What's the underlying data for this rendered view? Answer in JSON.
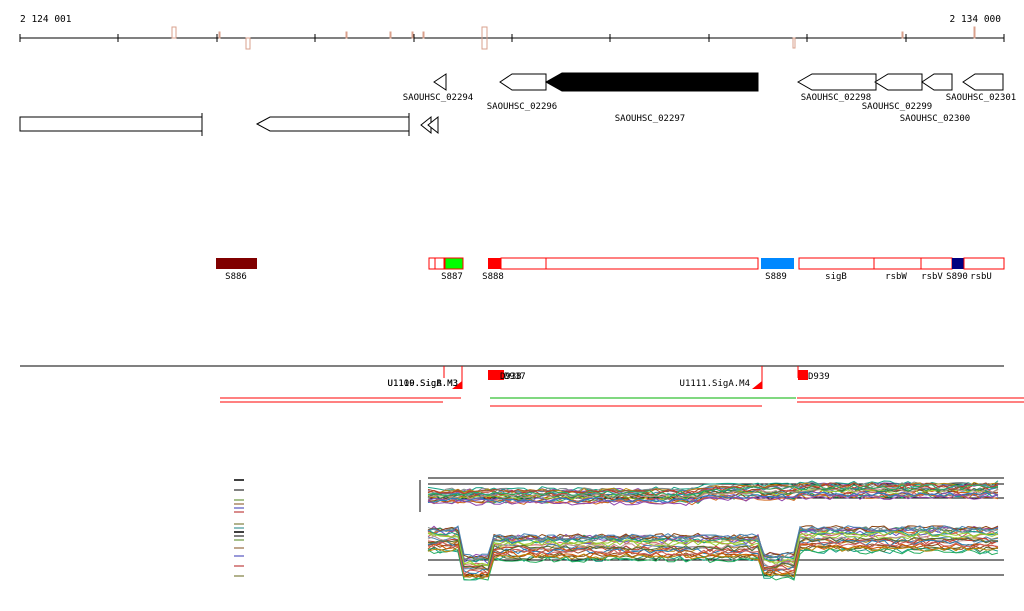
{
  "colors": {
    "background": "#ffffff",
    "axis": "#000000",
    "tick_mark": "#d9a08c",
    "gene_fill": "#ffffff",
    "gene_filled": "#000000",
    "segment_outline": "#ff0000",
    "s886": "#800000",
    "s887": "#00ff00",
    "s888": "#ff0000",
    "s889": "#0088ff",
    "s890": "#000080",
    "sigA_line": "#ff0000",
    "green_line": "#00b000",
    "tiling_dark": "#000000"
  },
  "axis": {
    "start_label": "2 124 001",
    "end_label": "2 134 000"
  },
  "genes": [
    {
      "id": "g1",
      "label": "",
      "strand": "plus",
      "filled": false
    },
    {
      "id": "g2",
      "label": "",
      "strand": "minus",
      "filled": false
    },
    {
      "id": "g3",
      "label": "",
      "strand": "minus",
      "filled": false
    },
    {
      "id": "g4",
      "label": "SAOUHSC_02294",
      "strand": "minus",
      "filled": false
    },
    {
      "id": "g5",
      "label": "SAOUHSC_02296",
      "strand": "minus",
      "filled": false
    },
    {
      "id": "g6",
      "label": "SAOUHSC_02297",
      "strand": "minus",
      "filled": true
    },
    {
      "id": "g7",
      "label": "SAOUHSC_02298",
      "strand": "minus",
      "filled": false
    },
    {
      "id": "g8",
      "label": "SAOUHSC_02299",
      "strand": "minus",
      "filled": false
    },
    {
      "id": "g9",
      "label": "SAOUHSC_02300",
      "strand": "minus",
      "filled": false
    },
    {
      "id": "g10",
      "label": "SAOUHSC_02301",
      "strand": "minus",
      "filled": false
    }
  ],
  "segments": [
    {
      "label": "S886"
    },
    {
      "label": "S887"
    },
    {
      "label": "S888"
    },
    {
      "label": "S889"
    },
    {
      "label": "sigB"
    },
    {
      "label": "rsbW"
    },
    {
      "label": "rsbV"
    },
    {
      "label": "S890"
    },
    {
      "label": "rsbU"
    }
  ],
  "promoters": {
    "overlapping_label": "U1109.SigB.M3",
    "overlapping_label_2": "U1110.SigA.M3",
    "left_marker": "D938",
    "left_marker_2": "D937",
    "right_marker": "D939",
    "sigA_m4": "U1111.SigA.M4"
  }
}
